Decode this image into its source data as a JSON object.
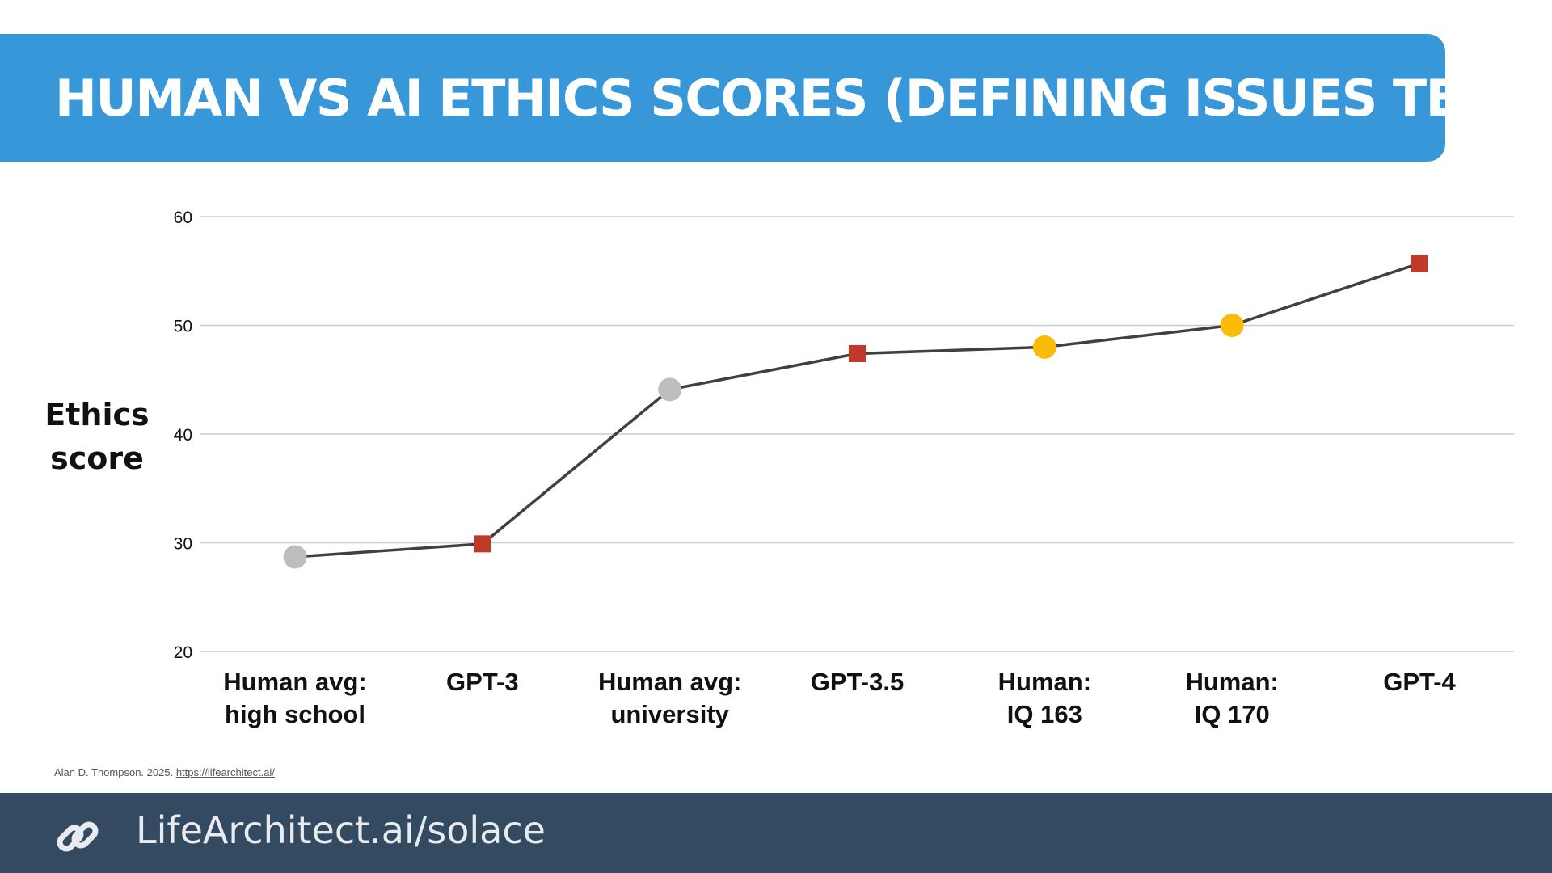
{
  "banner": {
    "title": "HUMAN VS AI ETHICS SCORES (DEFINING ISSUES TEST)"
  },
  "chart_data": {
    "type": "line",
    "title": "HUMAN VS AI ETHICS SCORES (DEFINING ISSUES TEST)",
    "ylabel_lines": [
      "Ethics",
      "score"
    ],
    "xlabel": "",
    "ylim": [
      20,
      60
    ],
    "yticks": [
      20,
      30,
      40,
      50,
      60
    ],
    "grid": true,
    "line_color": "#404040",
    "points": [
      {
        "label_lines": [
          "Human avg:",
          "high school"
        ],
        "value": 28.7,
        "kind": "human",
        "marker": "circle",
        "color": "#bdbdbd"
      },
      {
        "label_lines": [
          "GPT-3"
        ],
        "value": 29.9,
        "kind": "ai",
        "marker": "square",
        "color": "#c0392b"
      },
      {
        "label_lines": [
          "Human avg:",
          "university"
        ],
        "value": 44.1,
        "kind": "human",
        "marker": "circle",
        "color": "#bdbdbd"
      },
      {
        "label_lines": [
          "GPT-3.5"
        ],
        "value": 47.4,
        "kind": "ai",
        "marker": "square",
        "color": "#c0392b"
      },
      {
        "label_lines": [
          "Human:",
          "IQ 163"
        ],
        "value": 48.0,
        "kind": "human-genius",
        "marker": "circle",
        "color": "#fbbc05"
      },
      {
        "label_lines": [
          "Human:",
          "IQ 170"
        ],
        "value": 50.0,
        "kind": "human-genius",
        "marker": "circle",
        "color": "#fbbc05"
      },
      {
        "label_lines": [
          "GPT-4"
        ],
        "value": 55.7,
        "kind": "ai",
        "marker": "square",
        "color": "#c0392b"
      }
    ]
  },
  "credit": {
    "text": "Alan D. Thompson. 2025.",
    "link": "https://lifearchitect.ai/"
  },
  "footer": {
    "icon": "link-icon",
    "text": "LifeArchitect.ai/solace"
  }
}
